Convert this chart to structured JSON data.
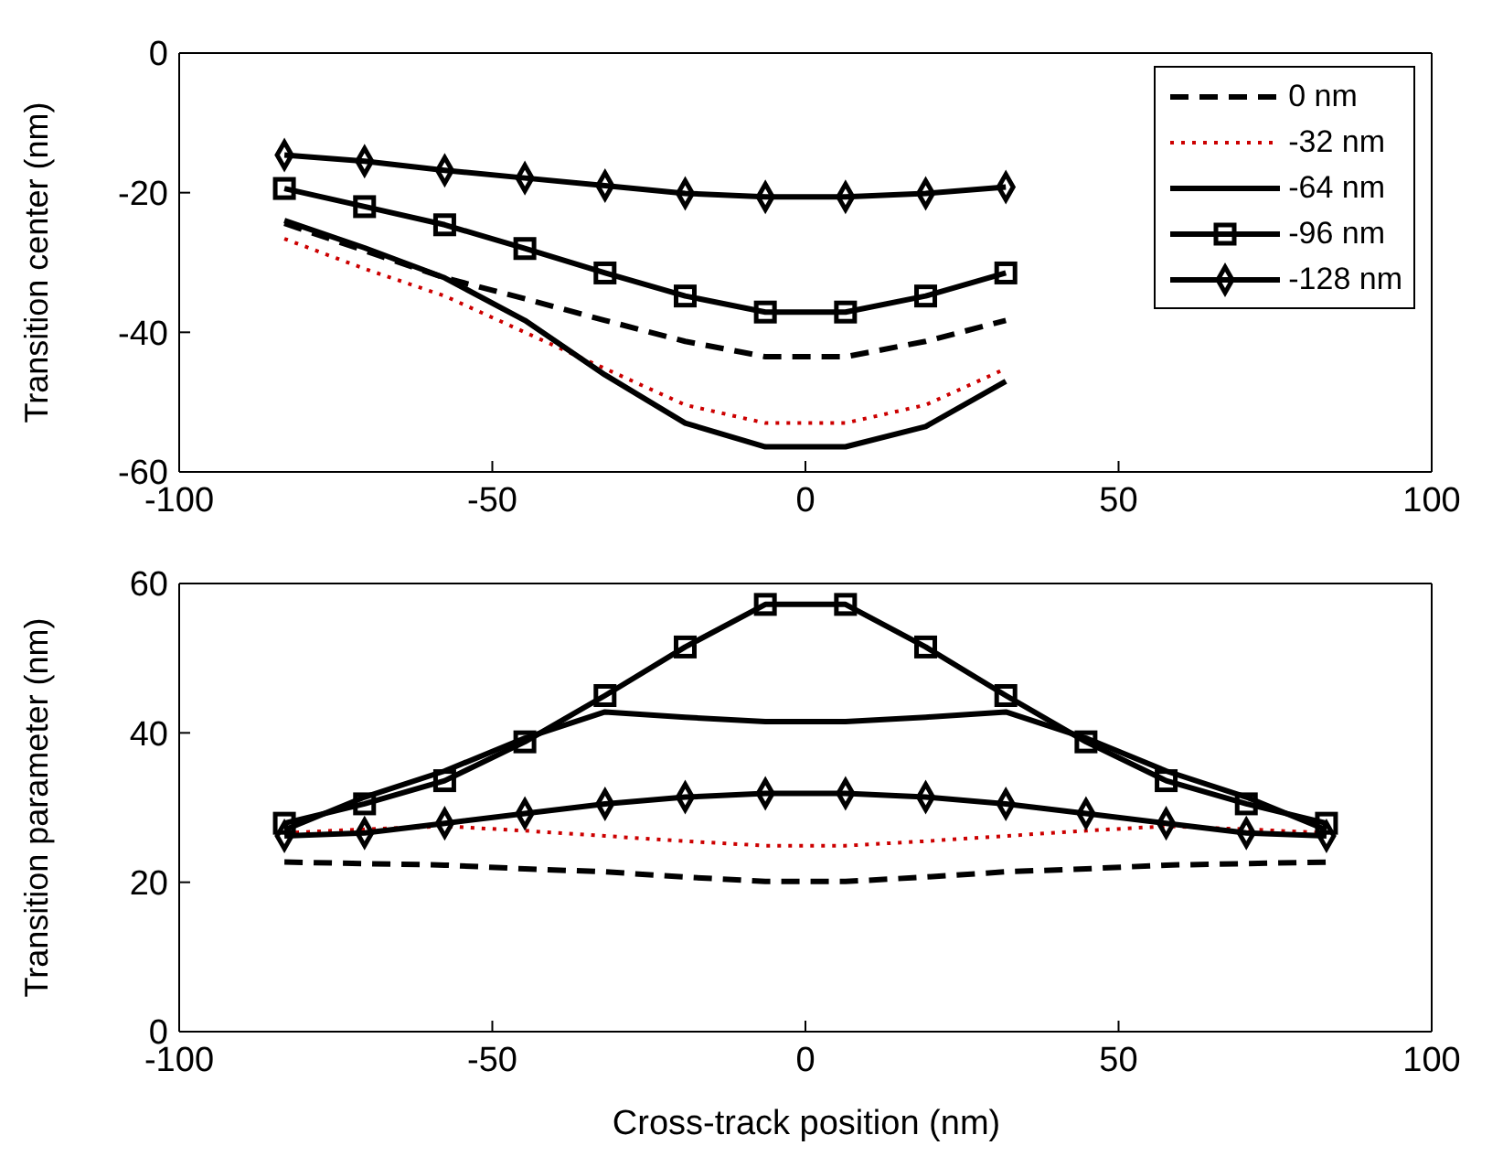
{
  "chart_data": [
    {
      "type": "line",
      "ylabel": "Transition center (nm)",
      "x": [
        -83.2,
        -70.4,
        -57.6,
        -44.8,
        -32,
        -19.2,
        -6.4,
        6.4,
        19.2,
        32
      ],
      "xlim": [
        -100,
        100
      ],
      "xticks": [
        -100,
        -50,
        0,
        50,
        100
      ],
      "ylim": [
        -60,
        0
      ],
      "yticks": [
        -60,
        -40,
        -20,
        0
      ],
      "grid": false,
      "legend": "top right",
      "series": [
        {
          "name": "0 nm",
          "color": "#000000",
          "line_style": "dashed",
          "marker": "none",
          "values": [
            -24.4,
            -28.3,
            -32.2,
            -35.2,
            -38.3,
            -41.3,
            -43.5,
            -43.5,
            -41.3,
            -38.3
          ]
        },
        {
          "name": "-32 nm",
          "color": "#cc0000",
          "line_style": "dotted",
          "marker": "none",
          "values": [
            -26.6,
            -30.9,
            -34.8,
            -40,
            -45.2,
            -50.4,
            -53,
            -53,
            -50.4,
            -45.2
          ]
        },
        {
          "name": "-64 nm",
          "color": "#000000",
          "line_style": "solid",
          "marker": "none",
          "values": [
            -24,
            -27.9,
            -32.2,
            -38.3,
            -46.1,
            -53,
            -56.4,
            -56.4,
            -53.5,
            -47
          ]
        },
        {
          "name": "-96 nm",
          "color": "#000000",
          "line_style": "solid",
          "marker": "square",
          "values": [
            -19.4,
            -22,
            -24.6,
            -28,
            -31.5,
            -34.8,
            -37.1,
            -37.1,
            -34.8,
            -31.5
          ]
        },
        {
          "name": "-128 nm",
          "color": "#000000",
          "line_style": "solid",
          "marker": "diamond",
          "values": [
            -14.6,
            -15.5,
            -16.8,
            -17.9,
            -19,
            -20.1,
            -20.6,
            -20.6,
            -20.1,
            -19.2
          ]
        }
      ]
    },
    {
      "type": "line",
      "xlabel": "Cross-track position (nm)",
      "ylabel": "Transition parameter (nm)",
      "x": [
        -83.2,
        -70.4,
        -57.6,
        -44.8,
        -32,
        -19.2,
        -6.4,
        6.4,
        19.2,
        32,
        44.8,
        57.6,
        70.4,
        83.2
      ],
      "xlim": [
        -100,
        100
      ],
      "xticks": [
        -100,
        -50,
        0,
        50,
        100
      ],
      "ylim": [
        0,
        60
      ],
      "yticks": [
        0,
        20,
        40,
        60
      ],
      "grid": false,
      "legend": false,
      "series": [
        {
          "color": "#000000",
          "line_style": "dashed",
          "marker": "none",
          "values": [
            22.7,
            22.5,
            22.3,
            21.8,
            21.4,
            20.7,
            20.1,
            20.1,
            20.7,
            21.4,
            21.8,
            22.3,
            22.5,
            22.7
          ]
        },
        {
          "color": "#cc0000",
          "line_style": "dotted",
          "marker": "none",
          "values": [
            26.6,
            27.1,
            27.5,
            26.9,
            26.2,
            25.5,
            24.9,
            24.9,
            25.5,
            26.2,
            26.9,
            27.5,
            27.1,
            26.6
          ]
        },
        {
          "color": "#000000",
          "line_style": "solid",
          "marker": "none",
          "values": [
            27,
            31.4,
            34.9,
            39.3,
            42.8,
            42.1,
            41.5,
            41.5,
            42.1,
            42.8,
            39.3,
            34.9,
            31.4,
            27
          ]
        },
        {
          "color": "#000000",
          "line_style": "solid",
          "marker": "square",
          "values": [
            27.9,
            30.5,
            33.6,
            38.8,
            45,
            51.5,
            57.2,
            57.2,
            51.5,
            45,
            38.8,
            33.6,
            30.5,
            27.9
          ]
        },
        {
          "color": "#000000",
          "line_style": "solid",
          "marker": "diamond",
          "values": [
            26.2,
            26.6,
            27.9,
            29.2,
            30.5,
            31.4,
            31.9,
            31.9,
            31.4,
            30.5,
            29.2,
            27.9,
            26.6,
            26.2
          ]
        }
      ]
    }
  ]
}
